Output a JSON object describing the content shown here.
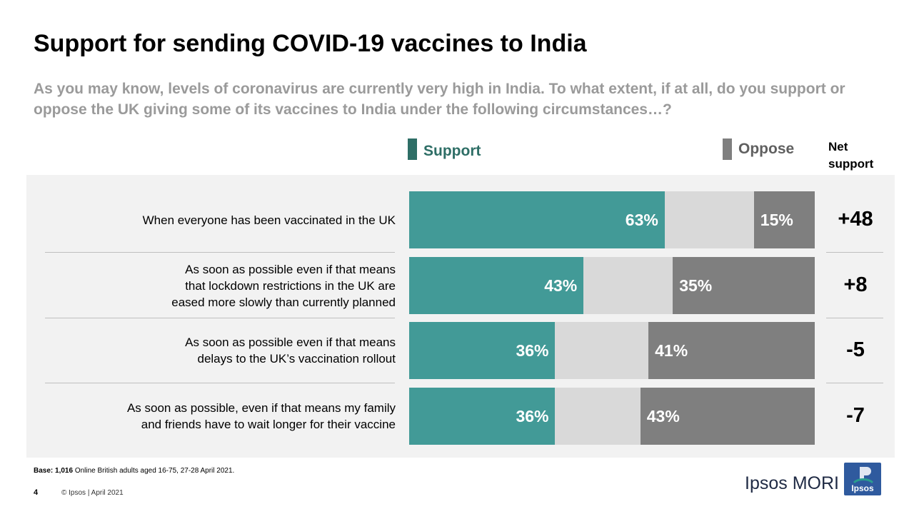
{
  "title": "Support for sending COVID-19 vaccines to India",
  "subtitle": "As you may know, levels of coronavirus are currently very high in India. To what extent, if at all, do you support or oppose the UK giving some of its vaccines to India under the following circumstances…?",
  "legend": {
    "support": "Support",
    "oppose": "Oppose",
    "net_line1": "Net",
    "net_line2": "support"
  },
  "colors": {
    "support": "#429a97",
    "neither": "#d9d9d9",
    "oppose": "#7f7f7f",
    "support_legend": "#2e6e66"
  },
  "chart_data": {
    "type": "bar",
    "orientation": "horizontal",
    "stacked": true,
    "xlim": [
      0,
      100
    ],
    "categories": [
      [
        "When everyone has been vaccinated in the UK"
      ],
      [
        "As soon as possible even if that means",
        "that lockdown restrictions in the UK are",
        "eased more slowly than currently planned"
      ],
      [
        "As soon as possible even if that means",
        "delays to the UK’s vaccination rollout"
      ],
      [
        "As soon as possible, even if that means my family",
        "and friends have to wait longer for their vaccine"
      ]
    ],
    "series": [
      {
        "name": "Support",
        "values": [
          63,
          43,
          36,
          36
        ],
        "labels": [
          "63%",
          "43%",
          "36%",
          "36%"
        ]
      },
      {
        "values": [
          22,
          22,
          23,
          21
        ]
      },
      {
        "name": "Oppose",
        "values": [
          15,
          35,
          41,
          43
        ],
        "labels": [
          "15%",
          "35%",
          "41%",
          "43%"
        ]
      }
    ],
    "net_support": [
      "+48",
      "+8",
      "-5",
      "-7"
    ]
  },
  "footer": {
    "base_bold": "Base: 1,016",
    "base_text": " Online British adults aged 16-75, 27-28 April 2021.",
    "page": "4",
    "copyright": "© Ipsos | April 2021",
    "brand": "Ipsos MORI",
    "logo_text": "Ipsos"
  }
}
